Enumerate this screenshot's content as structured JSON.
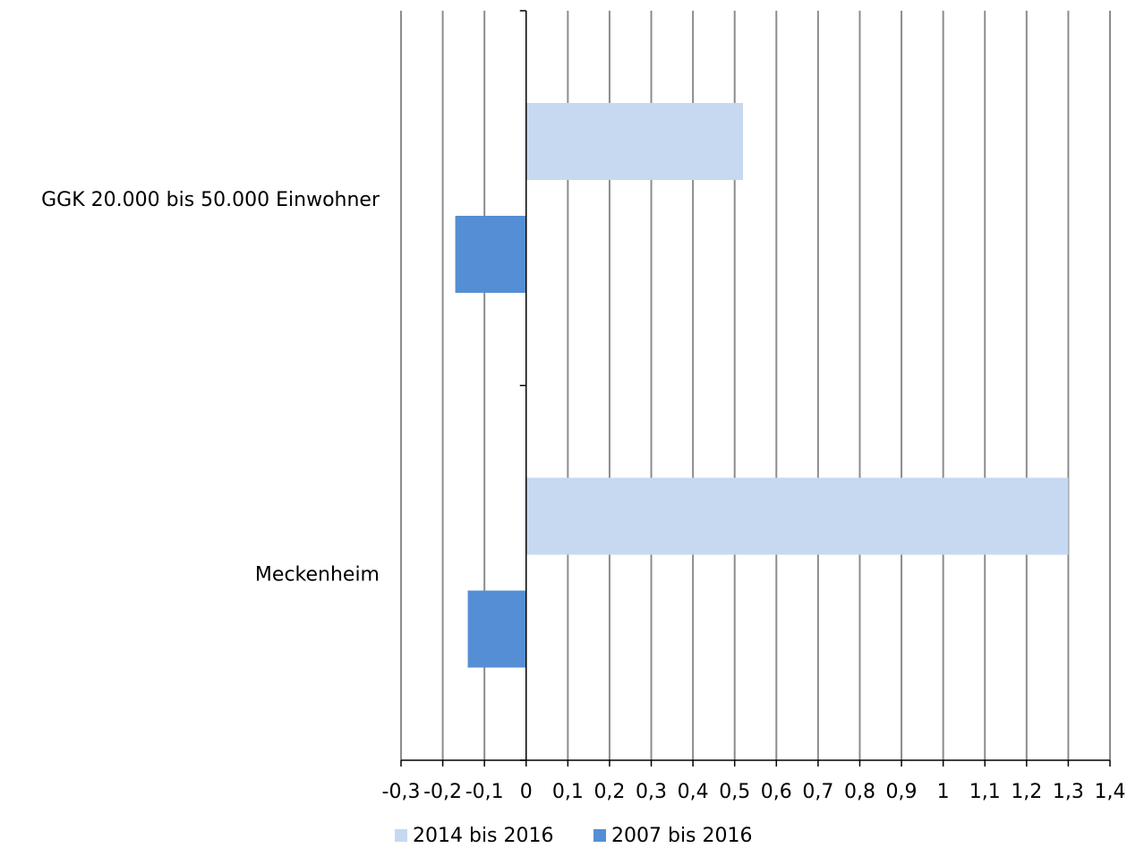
{
  "chart_data": {
    "type": "bar",
    "orientation": "horizontal",
    "categories": [
      "GGK 20.000 bis 50.000 Einwohner",
      "Meckenheim"
    ],
    "series": [
      {
        "name": "2014 bis 2016",
        "color": "#c6d9f1",
        "values": [
          0.52,
          1.3
        ]
      },
      {
        "name": "2007 bis 2016",
        "color": "#558ed5",
        "values": [
          -0.17,
          -0.14
        ]
      }
    ],
    "xlim": [
      -0.3,
      1.4
    ],
    "xticks": [
      -0.3,
      -0.2,
      -0.1,
      0,
      0.1,
      0.2,
      0.3,
      0.4,
      0.5,
      0.6,
      0.7,
      0.8,
      0.9,
      1,
      1.1,
      1.2,
      1.3,
      1.4
    ],
    "xtick_labels": [
      "-0,3",
      "-0,2",
      "-0,1",
      "0",
      "0,1",
      "0,2",
      "0,3",
      "0,4",
      "0,5",
      "0,6",
      "0,7",
      "0,8",
      "0,9",
      "1",
      "1,1",
      "1,2",
      "1,3",
      "1,4"
    ],
    "grid": "vertical",
    "legend": "bottom",
    "title": "",
    "xlabel": "",
    "ylabel": ""
  }
}
